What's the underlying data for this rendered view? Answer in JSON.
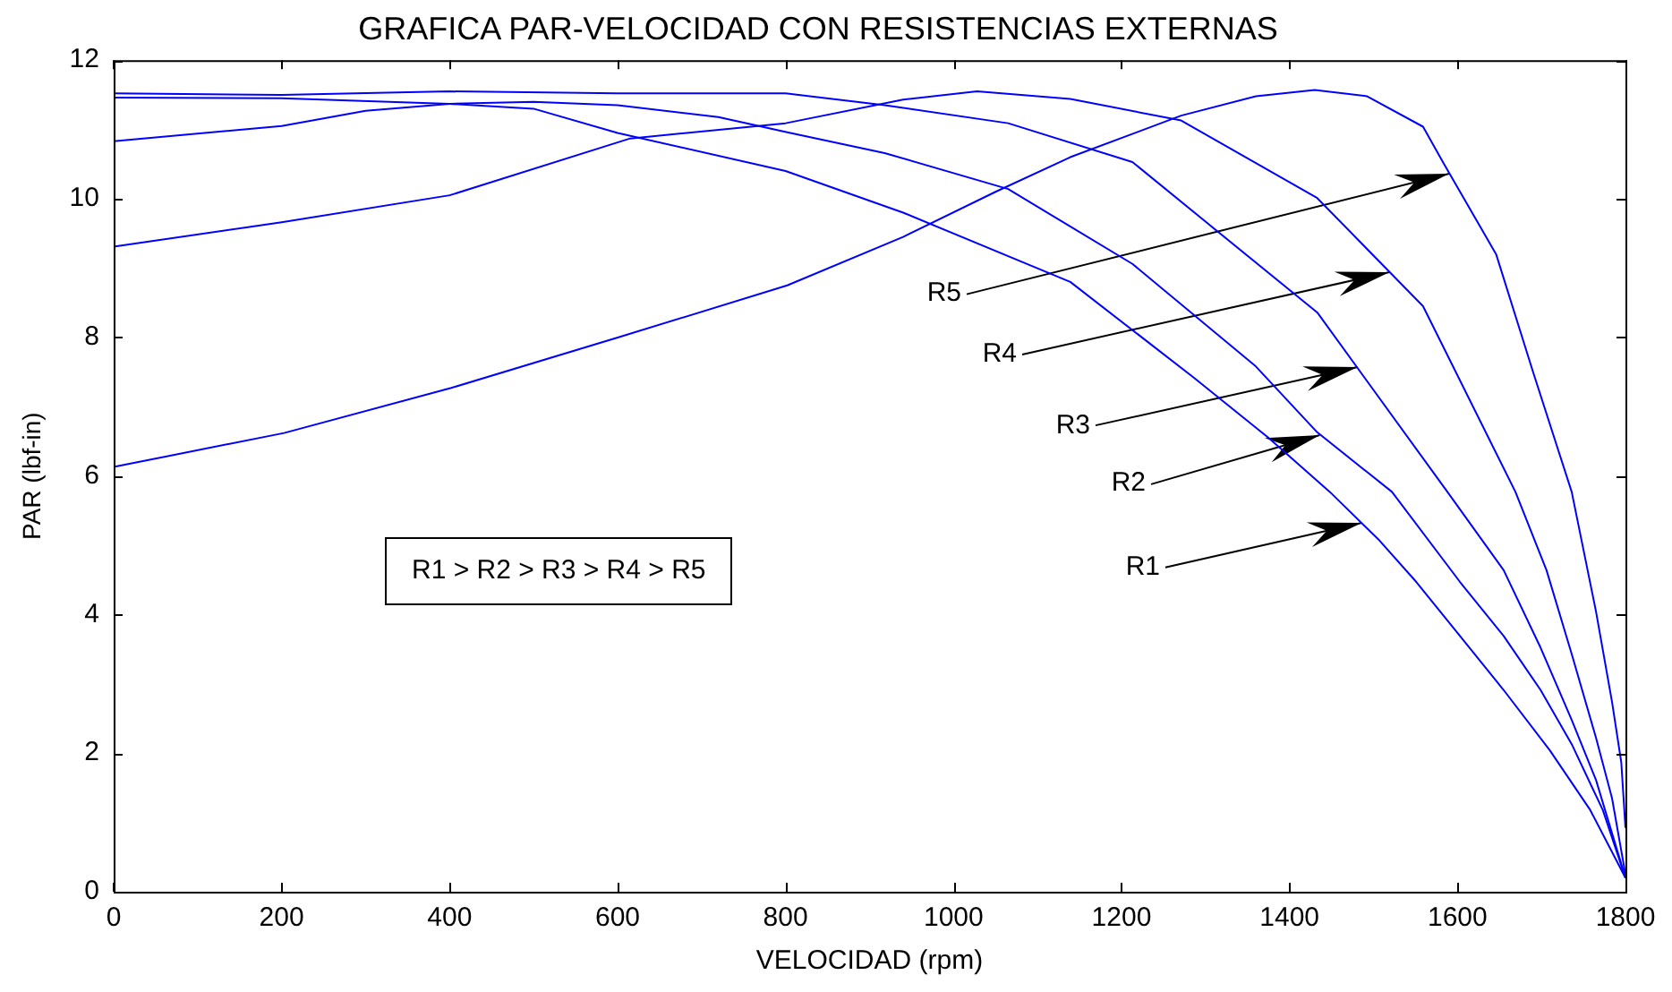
{
  "chart_data": {
    "type": "line",
    "title": "GRAFICA PAR-VELOCIDAD CON RESISTENCIAS EXTERNAS",
    "xlabel": "VELOCIDAD (rpm)",
    "ylabel": "PAR (lbf-in)",
    "xlim": [
      0,
      1800
    ],
    "xticks": [
      0,
      200,
      400,
      600,
      800,
      1000,
      1200,
      1400,
      1600,
      1800
    ],
    "ylim": [
      0,
      12
    ],
    "yticks": [
      0,
      2,
      4,
      6,
      8,
      10,
      12
    ],
    "grid": false,
    "legend": false,
    "marker": "none",
    "line_style": "solid",
    "series": [
      {
        "color": "#0000ff",
        "x": [
          0,
          200,
          400,
          500,
          600,
          800,
          940,
          1139,
          1286,
          1375,
          1448,
          1507,
          1551,
          1603,
          1655,
          1710,
          1758,
          1800
        ],
        "values": [
          11.46,
          11.45,
          11.37,
          11.3,
          10.95,
          10.4,
          9.8,
          8.8,
          7.42,
          6.55,
          5.77,
          5.07,
          4.47,
          3.69,
          2.91,
          2.04,
          1.18,
          0.2
        ]
      },
      {
        "color": "#0000ff",
        "x": [
          0,
          200,
          300,
          400,
          500,
          600,
          720,
          802,
          918,
          1065,
          1213,
          1360,
          1433,
          1522,
          1603,
          1655,
          1699,
          1736,
          1773,
          1800
        ],
        "values": [
          10.83,
          11.05,
          11.27,
          11.37,
          11.4,
          11.35,
          11.18,
          10.96,
          10.66,
          10.14,
          9.06,
          7.58,
          6.63,
          5.77,
          4.47,
          3.69,
          2.91,
          2.13,
          1.18,
          0.2
        ]
      },
      {
        "color": "#0000ff",
        "x": [
          0,
          200,
          400,
          600,
          800,
          918,
          1065,
          1213,
          1301,
          1433,
          1588,
          1655,
          1699,
          1736,
          1765,
          1800
        ],
        "values": [
          11.52,
          11.5,
          11.55,
          11.52,
          11.52,
          11.35,
          11.09,
          10.53,
          9.66,
          8.36,
          5.77,
          4.64,
          3.52,
          2.48,
          1.61,
          0.2
        ]
      },
      {
        "color": "#0000ff",
        "x": [
          0,
          200,
          400,
          615,
          800,
          940,
          1028,
          1139,
          1271,
          1433,
          1559,
          1669,
          1706,
          1736,
          1765,
          1784,
          1800
        ],
        "values": [
          9.31,
          9.66,
          10.05,
          10.87,
          11.09,
          11.43,
          11.55,
          11.44,
          11.13,
          10.01,
          8.45,
          5.77,
          4.64,
          3.43,
          2.22,
          1.35,
          0.25
        ]
      },
      {
        "color": "#0000ff",
        "x": [
          0,
          203,
          402,
          601,
          802,
          940,
          1050,
          1139,
          1271,
          1360,
          1430,
          1492,
          1559,
          1584,
          1646,
          1690,
          1736,
          1765,
          1784,
          1795,
          1800
        ],
        "values": [
          6.13,
          6.62,
          7.27,
          8.0,
          8.75,
          9.45,
          10.1,
          10.6,
          11.2,
          11.48,
          11.57,
          11.48,
          11.04,
          10.5,
          9.2,
          7.5,
          5.77,
          4.04,
          2.74,
          1.87,
          0.92
        ]
      }
    ],
    "annotations": [
      {
        "text": "R5",
        "x": 1590,
        "y": 10.37
      },
      {
        "text": "R4",
        "x": 1519,
        "y": 8.94
      },
      {
        "text": "R3",
        "x": 1481,
        "y": 7.56
      },
      {
        "text": "R2",
        "x": 1436,
        "y": 6.6
      },
      {
        "text": "R1",
        "x": 1486,
        "y": 5.32
      },
      "R1 > R2 > R3 > R4 > R5"
    ]
  }
}
